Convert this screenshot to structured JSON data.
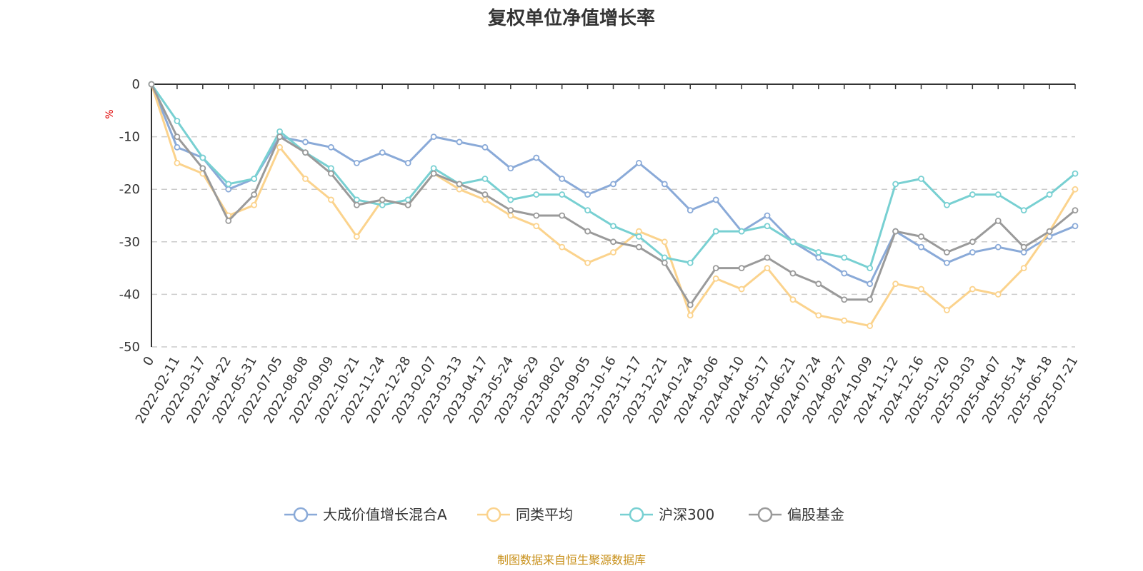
{
  "chart_data": {
    "type": "line",
    "title": "复权单位净值增长率",
    "ylabel": "%",
    "xlabel": "",
    "ylim": [
      -50,
      0
    ],
    "yticks": [
      0,
      -10,
      -20,
      -30,
      -40,
      -50
    ],
    "grid": true,
    "legend_position": "bottom",
    "x_tick_labels": [
      "0",
      "2022-02-11",
      "2022-03-17",
      "2022-04-22",
      "2022-05-31",
      "2022-07-05",
      "2022-08-08",
      "2022-09-09",
      "2022-10-21",
      "2022-11-24",
      "2022-12-28",
      "2023-02-07",
      "2023-03-13",
      "2023-04-17",
      "2023-05-24",
      "2023-06-29",
      "2023-08-02",
      "2023-09-05",
      "2023-10-16",
      "2023-11-17",
      "2023-12-21",
      "2024-01-24",
      "2024-03-06",
      "2024-04-10",
      "2024-05-17",
      "2024-06-21",
      "2024-07-24",
      "2024-08-27",
      "2024-10-09",
      "2024-11-12",
      "2024-12-16",
      "2025-01-20",
      "2025-03-03",
      "2025-04-07",
      "2025-05-14",
      "2025-06-18",
      "2025-07-21"
    ],
    "x": [
      "0",
      "2022-02-11",
      "2022-03-17",
      "2022-04-22",
      "2022-05-31",
      "2022-07-05",
      "2022-08-08",
      "2022-09-09",
      "2022-10-21",
      "2022-11-24",
      "2022-12-28",
      "2023-02-07",
      "2023-03-13",
      "2023-04-17",
      "2023-05-24",
      "2023-06-29",
      "2023-08-02",
      "2023-09-05",
      "2023-10-16",
      "2023-11-17",
      "2023-12-21",
      "2024-01-24",
      "2024-03-06",
      "2024-04-10",
      "2024-05-17",
      "2024-06-21",
      "2024-07-24",
      "2024-08-27",
      "2024-10-09",
      "2024-11-12",
      "2024-12-16",
      "2025-01-20",
      "2025-03-03",
      "2025-04-07",
      "2025-05-14",
      "2025-06-18",
      "2025-07-21"
    ],
    "series": [
      {
        "name": "大成价值增长混合A",
        "color": "#8aaad8",
        "values": [
          0,
          -12,
          -14,
          -20,
          -18,
          -10,
          -11,
          -12,
          -15,
          -13,
          -15,
          -10,
          -11,
          -12,
          -16,
          -14,
          -18,
          -21,
          -19,
          -15,
          -19,
          -24,
          -22,
          -28,
          -25,
          -30,
          -33,
          -36,
          -38,
          -28,
          -31,
          -34,
          -32,
          -31,
          -32,
          -29,
          -27
        ]
      },
      {
        "name": "同类平均",
        "color": "#fbd38d",
        "values": [
          0,
          -15,
          -17,
          -25,
          -23,
          -12,
          -18,
          -22,
          -29,
          -22,
          -23,
          -17,
          -20,
          -22,
          -25,
          -27,
          -31,
          -34,
          -32,
          -28,
          -30,
          -44,
          -37,
          -39,
          -35,
          -41,
          -44,
          -45,
          -46,
          -38,
          -39,
          -43,
          -39,
          -40,
          -35,
          -28,
          -20
        ]
      },
      {
        "name": "沪深300",
        "color": "#78d0d2",
        "values": [
          0,
          -7,
          -14,
          -19,
          -18,
          -9,
          -13,
          -16,
          -22,
          -23,
          -22,
          -16,
          -19,
          -18,
          -22,
          -21,
          -21,
          -24,
          -27,
          -29,
          -33,
          -34,
          -28,
          -28,
          -27,
          -30,
          -32,
          -33,
          -35,
          -19,
          -18,
          -23,
          -21,
          -21,
          -24,
          -21,
          -17
        ]
      },
      {
        "name": "偏股基金",
        "color": "#9a9a9a",
        "values": [
          0,
          -10,
          -16,
          -26,
          -21,
          -10,
          -13,
          -17,
          -23,
          -22,
          -23,
          -17,
          -19,
          -21,
          -24,
          -25,
          -25,
          -28,
          -30,
          -31,
          -34,
          -42,
          -35,
          -35,
          -33,
          -36,
          -38,
          -41,
          -41,
          -28,
          -29,
          -32,
          -30,
          -26,
          -31,
          -28,
          -24
        ]
      }
    ]
  },
  "source_note": "制图数据来自恒生聚源数据库"
}
